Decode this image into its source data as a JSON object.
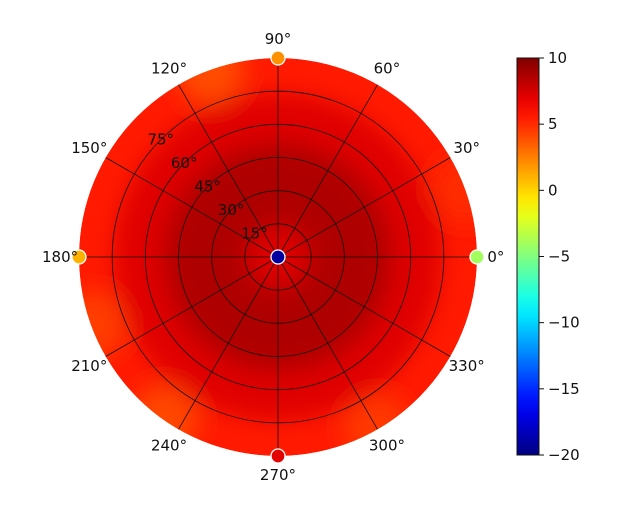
{
  "chart_data": {
    "type": "heatmap",
    "projection": "polar",
    "description_of_marks": "polar heat map, values mostly 7-9 in the disk, extreme samples at the pole and at 0/90/180/270 degrees on the rim",
    "angle_ticks": [
      {
        "deg": 0,
        "label": "0°"
      },
      {
        "deg": 30,
        "label": "30°"
      },
      {
        "deg": 60,
        "label": "60°"
      },
      {
        "deg": 90,
        "label": "90°"
      },
      {
        "deg": 120,
        "label": "120°"
      },
      {
        "deg": 150,
        "label": "150°"
      },
      {
        "deg": 180,
        "label": "180°"
      },
      {
        "deg": 210,
        "label": "210°"
      },
      {
        "deg": 240,
        "label": "240°"
      },
      {
        "deg": 270,
        "label": "270°"
      },
      {
        "deg": 300,
        "label": "300°"
      },
      {
        "deg": 330,
        "label": "330°"
      }
    ],
    "radial_ticks": [
      {
        "value": 15,
        "label": "15°"
      },
      {
        "value": 30,
        "label": "30°"
      },
      {
        "value": 45,
        "label": "45°"
      },
      {
        "value": 60,
        "label": "60°"
      },
      {
        "value": 75,
        "label": "75°"
      }
    ],
    "radial_range": [
      0,
      90
    ],
    "radial_tick_label_angle_deg": 135,
    "colorbar": {
      "colormap": "jet",
      "range": [
        -20,
        10
      ],
      "ticks": [
        10,
        5,
        0,
        -5,
        -10,
        -15,
        -20
      ],
      "tick_labels": [
        "10",
        "5",
        "0",
        "−5",
        "−10",
        "−15",
        "−20"
      ]
    },
    "field": {
      "base_value": 7.2,
      "inner_ring_value": 8.6,
      "inner_ring_radius": 45,
      "rim_value": 5.5,
      "rim_bright_patches": [
        {
          "azimuth_deg": 110,
          "value": 4.0
        },
        {
          "azimuth_deg": 200,
          "value": 4.5
        },
        {
          "azimuth_deg": 235,
          "value": 4.2
        },
        {
          "azimuth_deg": 300,
          "value": 4.6
        },
        {
          "azimuth_deg": 20,
          "value": 5.0
        }
      ]
    },
    "sample_points": [
      {
        "azimuth_deg": 0,
        "zenith_deg": 0,
        "value": -19,
        "label": "pole"
      },
      {
        "azimuth_deg": 0,
        "zenith_deg": 90,
        "value": -4
      },
      {
        "azimuth_deg": 90,
        "zenith_deg": 90,
        "value": 2
      },
      {
        "azimuth_deg": 180,
        "zenith_deg": 90,
        "value": 1
      },
      {
        "azimuth_deg": 270,
        "zenith_deg": 90,
        "value": 7
      }
    ],
    "title": "",
    "grid": true
  }
}
